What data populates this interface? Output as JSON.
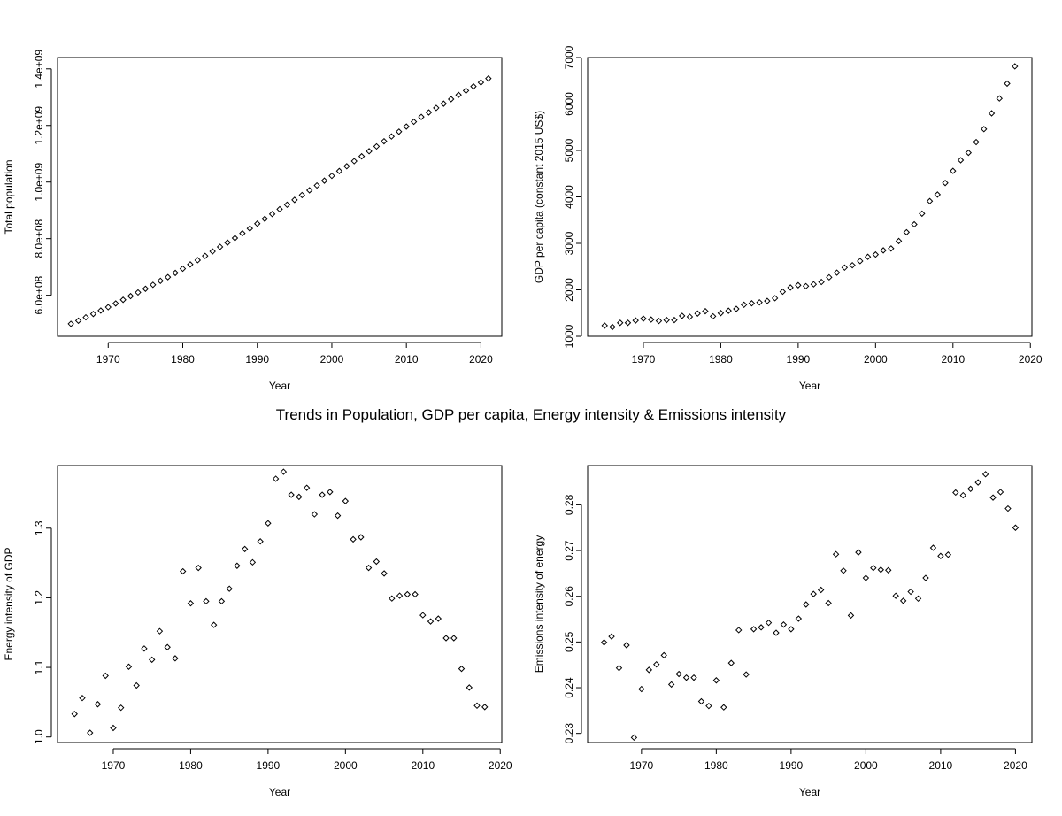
{
  "figure": {
    "title": "Trends in Population, GDP per capita, Energy intensity & Emissions intensity"
  },
  "chart_data": [
    {
      "type": "scatter",
      "xlabel": "Year",
      "ylabel": "Total population",
      "xlim": [
        1963.2,
        2022.8
      ],
      "ylim": [
        455000000,
        1440000000
      ],
      "xticks": [
        1970,
        1980,
        1990,
        2000,
        2010,
        2020
      ],
      "xtick_labels": [
        "1970",
        "1980",
        "1990",
        "2000",
        "2010",
        "2020"
      ],
      "yticks": [
        600000000,
        800000000,
        1000000000,
        1200000000,
        1400000000
      ],
      "ytick_labels": [
        "6.0e+08",
        "8.0e+08",
        "1.0e+09",
        "1.2e+09",
        "1.4e+09"
      ],
      "grid": false,
      "x": [
        1965,
        1966,
        1967,
        1968,
        1969,
        1970,
        1971,
        1972,
        1973,
        1974,
        1975,
        1976,
        1977,
        1978,
        1979,
        1980,
        1981,
        1982,
        1983,
        1984,
        1985,
        1986,
        1987,
        1988,
        1989,
        1990,
        1991,
        1992,
        1993,
        1994,
        1995,
        1996,
        1997,
        1998,
        1999,
        2000,
        2001,
        2002,
        2003,
        2004,
        2005,
        2006,
        2007,
        2008,
        2009,
        2010,
        2011,
        2012,
        2013,
        2014,
        2015,
        2016,
        2017,
        2018,
        2019,
        2020,
        2021
      ],
      "y": [
        499000000,
        510000000,
        522000000,
        534000000,
        546000000,
        558000000,
        571000000,
        584000000,
        597000000,
        610000000,
        623000000,
        637000000,
        651000000,
        664000000,
        679000000,
        694000000,
        709000000,
        724000000,
        739000000,
        755000000,
        771000000,
        786000000,
        802000000,
        819000000,
        836000000,
        853000000,
        870000000,
        887000000,
        904000000,
        920000000,
        937000000,
        954000000,
        971000000,
        988000000,
        1005000000,
        1022000000,
        1039000000,
        1056000000,
        1074000000,
        1091000000,
        1109000000,
        1126000000,
        1144000000,
        1161000000,
        1178000000,
        1196000000,
        1213000000,
        1230000000,
        1246000000,
        1262000000,
        1277000000,
        1293000000,
        1308000000,
        1323000000,
        1338000000,
        1352000000,
        1366000000
      ]
    },
    {
      "type": "scatter",
      "xlabel": "Year",
      "ylabel": "GDP per capita (constant 2015 US$)",
      "xlim": [
        1962.8,
        2020.2
      ],
      "ylim": [
        1000,
        7000
      ],
      "xticks": [
        1970,
        1980,
        1990,
        2000,
        2010,
        2020
      ],
      "xtick_labels": [
        "1970",
        "1980",
        "1990",
        "2000",
        "2010",
        "2020"
      ],
      "yticks": [
        1000,
        2000,
        3000,
        4000,
        5000,
        6000,
        7000
      ],
      "ytick_labels": [
        "1000",
        "2000",
        "3000",
        "4000",
        "5000",
        "6000",
        "7000"
      ],
      "grid": false,
      "x": [
        1965,
        1966,
        1967,
        1968,
        1969,
        1970,
        1971,
        1972,
        1973,
        1974,
        1975,
        1976,
        1977,
        1978,
        1979,
        1980,
        1981,
        1982,
        1983,
        1984,
        1985,
        1986,
        1987,
        1988,
        1989,
        1990,
        1991,
        1992,
        1993,
        1994,
        1995,
        1996,
        1997,
        1998,
        1999,
        2000,
        2001,
        2002,
        2003,
        2004,
        2005,
        2006,
        2007,
        2008,
        2009,
        2010,
        2011,
        2012,
        2013,
        2014,
        2015,
        2016,
        2017,
        2018
      ],
      "y": [
        1230,
        1200,
        1290,
        1290,
        1340,
        1380,
        1360,
        1330,
        1350,
        1350,
        1440,
        1420,
        1490,
        1540,
        1430,
        1500,
        1550,
        1590,
        1680,
        1710,
        1730,
        1760,
        1820,
        1960,
        2050,
        2100,
        2080,
        2120,
        2170,
        2270,
        2370,
        2480,
        2530,
        2620,
        2710,
        2760,
        2850,
        2890,
        3050,
        3240,
        3410,
        3640,
        3910,
        4050,
        4300,
        4560,
        4790,
        4950,
        5180,
        5460,
        5800,
        6120,
        6440,
        6810
      ]
    },
    {
      "type": "scatter",
      "xlabel": "Year",
      "ylabel": "Energy intensity of GDP",
      "xlim": [
        1962.8,
        2020.2
      ],
      "ylim": [
        0.992,
        1.39
      ],
      "xticks": [
        1970,
        1980,
        1990,
        2000,
        2010,
        2020
      ],
      "xtick_labels": [
        "1970",
        "1980",
        "1990",
        "2000",
        "2010",
        "2020"
      ],
      "yticks": [
        1.0,
        1.1,
        1.2,
        1.3
      ],
      "ytick_labels": [
        "1.0",
        "1.1",
        "1.2",
        "1.3"
      ],
      "grid": false,
      "x": [
        1965,
        1966,
        1967,
        1968,
        1969,
        1970,
        1971,
        1972,
        1973,
        1974,
        1975,
        1976,
        1977,
        1978,
        1979,
        1980,
        1981,
        1982,
        1983,
        1984,
        1985,
        1986,
        1987,
        1988,
        1989,
        1990,
        1991,
        1992,
        1993,
        1994,
        1995,
        1996,
        1997,
        1998,
        1999,
        2000,
        2001,
        2002,
        2003,
        2004,
        2005,
        2006,
        2007,
        2008,
        2009,
        2010,
        2011,
        2012,
        2013,
        2014,
        2015,
        2016,
        2017,
        2018
      ],
      "y": [
        1.033,
        1.056,
        1.006,
        1.047,
        1.088,
        1.013,
        1.042,
        1.101,
        1.074,
        1.127,
        1.111,
        1.152,
        1.129,
        1.113,
        1.238,
        1.192,
        1.243,
        1.195,
        1.161,
        1.195,
        1.213,
        1.246,
        1.27,
        1.251,
        1.281,
        1.307,
        1.371,
        1.381,
        1.348,
        1.345,
        1.358,
        1.32,
        1.348,
        1.352,
        1.318,
        1.339,
        1.284,
        1.287,
        1.243,
        1.252,
        1.235,
        1.199,
        1.203,
        1.205,
        1.205,
        1.175,
        1.166,
        1.17,
        1.142,
        1.142,
        1.098,
        1.071,
        1.045,
        1.043
      ]
    },
    {
      "type": "scatter",
      "xlabel": "Year",
      "ylabel": "Emissions intensity of energy",
      "xlim": [
        1962.8,
        2022.2
      ],
      "ylim": [
        0.228,
        0.2886
      ],
      "xticks": [
        1970,
        1980,
        1990,
        2000,
        2010,
        2020
      ],
      "xtick_labels": [
        "1970",
        "1980",
        "1990",
        "2000",
        "2010",
        "2020"
      ],
      "yticks": [
        0.23,
        0.24,
        0.25,
        0.26,
        0.27,
        0.28
      ],
      "ytick_labels": [
        "0.23",
        "0.24",
        "0.25",
        "0.26",
        "0.27",
        "0.28"
      ],
      "grid": false,
      "x": [
        1965,
        1966,
        1967,
        1968,
        1969,
        1970,
        1971,
        1972,
        1973,
        1974,
        1975,
        1976,
        1977,
        1978,
        1979,
        1980,
        1981,
        1982,
        1983,
        1984,
        1985,
        1986,
        1987,
        1988,
        1989,
        1990,
        1991,
        1992,
        1993,
        1994,
        1995,
        1996,
        1997,
        1998,
        1999,
        2000,
        2001,
        2002,
        2003,
        2004,
        2005,
        2006,
        2007,
        2008,
        2009,
        2010,
        2011,
        2012,
        2013,
        2014,
        2015,
        2016,
        2017,
        2018,
        2019,
        2020
      ],
      "y": [
        0.2499,
        0.2512,
        0.2443,
        0.2493,
        0.2291,
        0.2397,
        0.2439,
        0.2451,
        0.2471,
        0.2407,
        0.243,
        0.2422,
        0.2422,
        0.237,
        0.236,
        0.2416,
        0.2357,
        0.2454,
        0.2526,
        0.2429,
        0.2528,
        0.2532,
        0.2542,
        0.252,
        0.2538,
        0.2528,
        0.2551,
        0.2582,
        0.2605,
        0.2614,
        0.2585,
        0.2692,
        0.2656,
        0.2558,
        0.2696,
        0.264,
        0.2662,
        0.2658,
        0.2657,
        0.2601,
        0.259,
        0.261,
        0.2595,
        0.264,
        0.2706,
        0.2688,
        0.2691,
        0.2827,
        0.2821,
        0.2835,
        0.2849,
        0.2867,
        0.2816,
        0.2828,
        0.2792,
        0.275
      ]
    }
  ]
}
